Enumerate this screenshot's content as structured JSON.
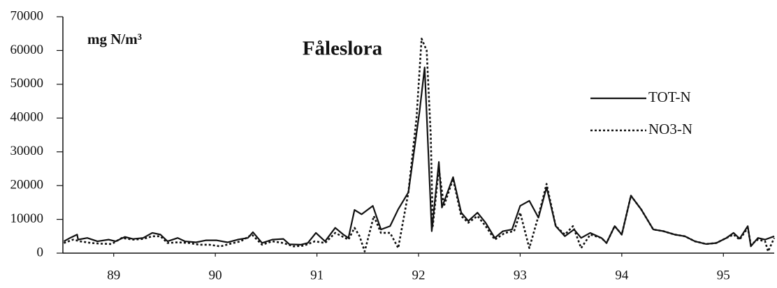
{
  "chart_data": {
    "type": "line",
    "title": "Fåleslora",
    "y_label": "mg N/m³",
    "xlim": [
      88.5,
      95.5
    ],
    "xticks": [
      89,
      90,
      91,
      92,
      93,
      94,
      95
    ],
    "ylim": [
      0,
      70000
    ],
    "yticks": [
      0,
      10000,
      20000,
      30000,
      40000,
      50000,
      60000,
      70000
    ],
    "grid": false,
    "legend": "upper right",
    "series": [
      {
        "name": "TOT-N",
        "color": "#111111",
        "line_style": "solid",
        "x": [
          88.51,
          88.57,
          88.64,
          88.65,
          88.74,
          88.84,
          88.95,
          89.02,
          89.11,
          89.19,
          89.29,
          89.38,
          89.46,
          89.53,
          89.63,
          89.7,
          89.81,
          89.91,
          90.01,
          90.12,
          90.22,
          90.32,
          90.37,
          90.46,
          90.56,
          90.67,
          90.73,
          90.84,
          90.91,
          90.99,
          91.08,
          91.18,
          91.26,
          91.31,
          91.37,
          91.44,
          91.55,
          91.63,
          91.72,
          91.8,
          91.9,
          92.01,
          92.06,
          92.13,
          92.2,
          92.23,
          92.34,
          92.42,
          92.49,
          92.58,
          92.66,
          92.75,
          92.83,
          92.92,
          93.0,
          93.09,
          93.18,
          93.26,
          93.35,
          93.44,
          93.53,
          93.6,
          93.69,
          93.8,
          93.85,
          93.93,
          94.0,
          94.09,
          94.19,
          94.31,
          94.41,
          94.52,
          94.62,
          94.72,
          94.83,
          94.93,
          95.03,
          95.1,
          95.16,
          95.24,
          95.27,
          95.34,
          95.41,
          95.5
        ],
        "values": [
          3500,
          4500,
          5500,
          4000,
          4500,
          3500,
          4000,
          3500,
          4800,
          4200,
          4500,
          6000,
          5500,
          3500,
          4500,
          3500,
          3200,
          3800,
          3800,
          3200,
          4000,
          4500,
          6200,
          3000,
          4000,
          4200,
          2600,
          2500,
          3000,
          6000,
          3500,
          7500,
          5500,
          4500,
          12800,
          11500,
          14000,
          7000,
          8000,
          13000,
          18000,
          42000,
          55000,
          6500,
          27000,
          13500,
          22500,
          12000,
          9500,
          12000,
          9000,
          4500,
          6500,
          7000,
          14000,
          15500,
          10500,
          19500,
          8000,
          5000,
          7000,
          4500,
          6000,
          4500,
          3000,
          8000,
          5500,
          17000,
          13000,
          7000,
          6500,
          5500,
          5000,
          3500,
          2700,
          3000,
          4500,
          6000,
          4300,
          8000,
          2000,
          4500,
          4000,
          5000
        ]
      },
      {
        "name": "NO3-N",
        "color": "#111111",
        "line_style": "dashed",
        "x": [
          88.51,
          88.6,
          88.67,
          88.78,
          88.88,
          88.98,
          89.08,
          89.19,
          89.29,
          89.38,
          89.46,
          89.53,
          89.63,
          89.74,
          89.84,
          89.94,
          90.05,
          90.15,
          90.25,
          90.36,
          90.46,
          90.56,
          90.67,
          90.77,
          90.87,
          90.98,
          91.08,
          91.18,
          91.31,
          91.37,
          91.42,
          91.47,
          91.56,
          91.63,
          91.72,
          91.8,
          91.9,
          91.98,
          92.03,
          92.08,
          92.12,
          92.14,
          92.2,
          92.25,
          92.34,
          92.42,
          92.49,
          92.58,
          92.66,
          92.75,
          92.85,
          92.94,
          93.0,
          93.09,
          93.18,
          93.26,
          93.35,
          93.44,
          93.52,
          93.6,
          93.69,
          93.8,
          93.85,
          93.93,
          94.0,
          94.09,
          94.19,
          94.31,
          94.41,
          94.52,
          94.62,
          94.72,
          94.83,
          94.93,
          95.03,
          95.1,
          95.16,
          95.24,
          95.27,
          95.34,
          95.41,
          95.44,
          95.5
        ],
        "values": [
          3000,
          4000,
          3500,
          3000,
          2800,
          2700,
          4500,
          4000,
          4200,
          5000,
          5000,
          3000,
          3200,
          3000,
          2500,
          2500,
          2000,
          2800,
          3500,
          5500,
          2500,
          3500,
          3000,
          2000,
          2200,
          3500,
          3000,
          6000,
          4000,
          7500,
          5000,
          500,
          11000,
          6000,
          6000,
          1500,
          18000,
          40000,
          63500,
          60000,
          35000,
          8000,
          25000,
          14000,
          22000,
          11000,
          9000,
          11000,
          8000,
          4000,
          6000,
          6500,
          12000,
          1500,
          11000,
          20500,
          8000,
          5500,
          8000,
          1500,
          5500,
          4500,
          3000,
          8000,
          5500,
          17000,
          13000,
          7000,
          6500,
          5500,
          5000,
          3500,
          2700,
          3000,
          4500,
          5500,
          4000,
          7500,
          2500,
          4000,
          3500,
          500,
          4500
        ]
      }
    ]
  }
}
